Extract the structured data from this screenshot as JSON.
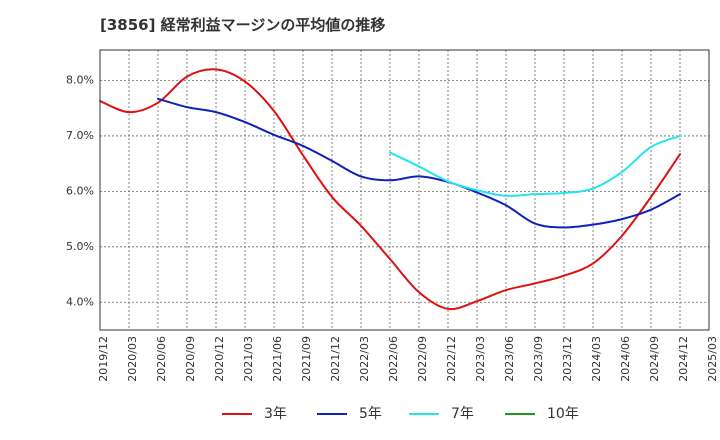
{
  "chart_data": {
    "type": "line",
    "title": "[3856]  経常利益マージンの平均値の推移",
    "xlabel": "",
    "ylabel": "",
    "x_ticks": [
      "2019/12",
      "2020/03",
      "2020/06",
      "2020/09",
      "2020/12",
      "2021/03",
      "2021/06",
      "2021/09",
      "2021/12",
      "2022/03",
      "2022/06",
      "2022/09",
      "2022/12",
      "2023/03",
      "2023/06",
      "2023/09",
      "2023/12",
      "2024/03",
      "2024/06",
      "2024/09",
      "2024/12",
      "2025/03"
    ],
    "y_ticks": [
      "4.0%",
      "5.0%",
      "6.0%",
      "7.0%",
      "8.0%"
    ],
    "y_tick_values": [
      4.0,
      5.0,
      6.0,
      7.0,
      8.0
    ],
    "ylim": [
      3.5,
      8.55
    ],
    "grid": true,
    "legend_position": "bottom",
    "series": [
      {
        "name": "3年",
        "color": "#dd1111",
        "x": [
          "2019/12",
          "2020/03",
          "2020/06",
          "2020/09",
          "2020/12",
          "2021/03",
          "2021/06",
          "2021/09",
          "2021/12",
          "2022/03",
          "2022/06",
          "2022/09",
          "2022/12",
          "2023/03",
          "2023/06",
          "2023/09",
          "2023/12",
          "2024/03",
          "2024/06",
          "2024/09",
          "2024/12"
        ],
        "values": [
          7.63,
          7.43,
          7.6,
          8.07,
          8.2,
          7.98,
          7.45,
          6.65,
          5.9,
          5.38,
          4.78,
          4.18,
          3.88,
          4.02,
          4.22,
          4.34,
          4.48,
          4.7,
          5.2,
          5.9,
          6.67
        ]
      },
      {
        "name": "5年",
        "color": "#1122bb",
        "x": [
          "2020/06",
          "2020/09",
          "2020/12",
          "2021/03",
          "2021/06",
          "2021/09",
          "2021/12",
          "2022/03",
          "2022/06",
          "2022/09",
          "2022/12",
          "2023/03",
          "2023/06",
          "2023/09",
          "2023/12",
          "2024/03",
          "2024/06",
          "2024/09",
          "2024/12"
        ],
        "values": [
          7.67,
          7.52,
          7.43,
          7.25,
          7.02,
          6.82,
          6.55,
          6.27,
          6.2,
          6.27,
          6.17,
          5.98,
          5.75,
          5.42,
          5.35,
          5.4,
          5.5,
          5.67,
          5.95
        ]
      },
      {
        "name": "7年",
        "color": "#22e6ee",
        "x": [
          "2022/06",
          "2022/09",
          "2022/12",
          "2023/03",
          "2023/06",
          "2023/09",
          "2023/12",
          "2024/03",
          "2024/06",
          "2024/09",
          "2024/12"
        ],
        "values": [
          6.7,
          6.45,
          6.18,
          6.02,
          5.92,
          5.95,
          5.97,
          6.05,
          6.35,
          6.8,
          7.0
        ]
      },
      {
        "name": "10年",
        "color": "#229922",
        "x": [],
        "values": []
      }
    ]
  }
}
